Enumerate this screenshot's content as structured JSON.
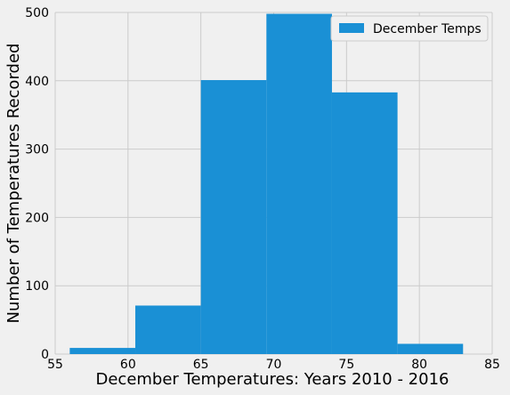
{
  "chart_data": {
    "type": "bar",
    "subtype": "histogram",
    "series": [
      {
        "name": "December Temps",
        "color": "#1a90d5",
        "bins": [
          {
            "x0": 56,
            "x1": 60.5,
            "value": 9
          },
          {
            "x0": 60.5,
            "x1": 65,
            "value": 71
          },
          {
            "x0": 65,
            "x1": 69.5,
            "value": 401
          },
          {
            "x0": 69.5,
            "x1": 74,
            "value": 498
          },
          {
            "x0": 74,
            "x1": 78.5,
            "value": 383
          },
          {
            "x0": 78.5,
            "x1": 83,
            "value": 15
          }
        ]
      }
    ],
    "xlabel": "December Temperatures: Years 2010 - 2016",
    "ylabel": "Number of Temperatures Recorded",
    "xlim": [
      55,
      85
    ],
    "ylim": [
      0,
      500
    ],
    "xticks": [
      55,
      60,
      65,
      70,
      75,
      80,
      85
    ],
    "yticks": [
      0,
      100,
      200,
      300,
      400,
      500
    ],
    "grid": true,
    "legend": {
      "position": "top-right",
      "entries": [
        "December Temps"
      ]
    },
    "colors": {
      "background": "#f0f0f0",
      "grid": "#cbcbcb",
      "bar": "#1a90d5"
    }
  }
}
